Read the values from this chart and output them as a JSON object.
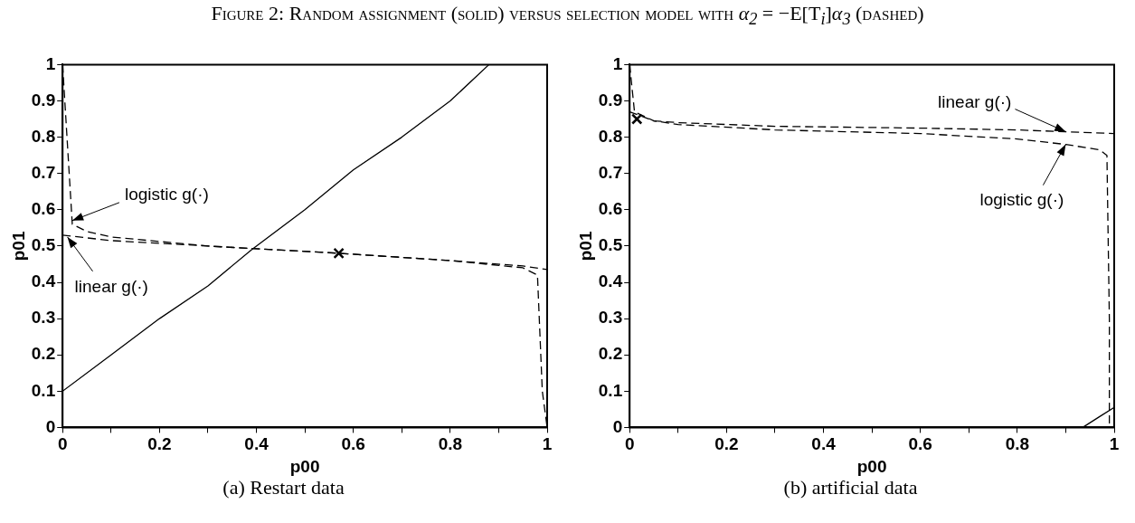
{
  "chart_data": [
    {
      "type": "line",
      "title": "Figure 2: Random assignment (solid) versus selection model with α$_{2}$ = −E[T$_{i}$]α$_{3}$ (dashed)",
      "xlabel": "p00",
      "ylabel": "p01",
      "xlim": [
        0,
        1
      ],
      "ylim": [
        0,
        1
      ],
      "xticks": [
        0,
        {
          "value": 0.1,
          "label": null
        },
        0.2,
        {
          "value": 0.3,
          "label": null
        },
        0.4,
        {
          "value": 0.5,
          "label": null
        },
        0.6,
        {
          "value": 0.7,
          "label": null
        },
        0.8,
        {
          "value": 0.9,
          "label": null
        },
        1
      ],
      "yticks": [
        0,
        0.1,
        0.2,
        0.3,
        0.4,
        0.5,
        0.6,
        0.7,
        0.8,
        0.9,
        1
      ],
      "grid": false,
      "series": [
        {
          "color": "#000000",
          "line_style": "solid",
          "x": [
            0,
            0.1,
            0.2,
            0.3,
            0.39,
            0.5,
            0.6,
            0.7,
            0.8,
            0.88
          ],
          "values": [
            0.1,
            0.2,
            0.3,
            0.39,
            0.49,
            0.6,
            0.71,
            0.8,
            0.9,
            1
          ]
        },
        {
          "type": "line",
          "color": "#000000",
          "line_style": "dashed",
          "x": [
            0,
            0.1,
            0.3,
            0.57,
            0.8,
            0.95,
            1
          ],
          "values": [
            0.53,
            0.515,
            0.5,
            0.48,
            0.46,
            0.445,
            0.435
          ]
        },
        {
          "type": "line",
          "color": "#000000",
          "line_style": "dashed",
          "x": [
            0,
            0.02,
            0.05,
            0.1,
            0.3,
            0.57,
            0.8,
            0.95,
            0.98,
            0.99,
            1
          ],
          "values": [
            1,
            0.56,
            0.54,
            0.525,
            0.5,
            0.48,
            0.46,
            0.44,
            0.42,
            0.1,
            0
          ]
        },
        {
          "type": "scatter",
          "color": "#000000",
          "marker": "cross",
          "x": [
            0.57
          ],
          "values": [
            0.48
          ]
        }
      ],
      "annotations": [
        {
          "text": "logistic g(·)",
          "x": 0.02,
          "y": 0.57
        },
        {
          "text": "linear g(·)",
          "x": 0.01,
          "y": 0.525
        },
        "(a) Restart data"
      ]
    },
    {
      "type": "line",
      "xlabel": "p00",
      "ylabel": "p01",
      "xlim": [
        0,
        1
      ],
      "ylim": [
        0,
        1
      ],
      "xticks": [
        0,
        {
          "value": 0.1,
          "label": null
        },
        0.2,
        {
          "value": 0.3,
          "label": null
        },
        0.4,
        {
          "value": 0.5,
          "label": null
        },
        0.6,
        {
          "value": 0.7,
          "label": null
        },
        0.8,
        {
          "value": 0.9,
          "label": null
        },
        1
      ],
      "yticks": [
        0,
        0.1,
        0.2,
        0.3,
        0.4,
        0.5,
        0.6,
        0.7,
        0.8,
        0.9,
        1
      ],
      "grid": false,
      "series": [
        {
          "color": "#000000",
          "line_style": "solid",
          "x": [
            0.935,
            0.97,
            1
          ],
          "values": [
            0,
            0.03,
            0.055
          ]
        },
        {
          "type": "line",
          "color": "#000000",
          "line_style": "dashed",
          "x": [
            0,
            0.05,
            0.1,
            0.3,
            0.6,
            0.8,
            0.9,
            1
          ],
          "values": [
            0.87,
            0.845,
            0.84,
            0.83,
            0.825,
            0.82,
            0.815,
            0.81
          ]
        },
        {
          "type": "line",
          "color": "#000000",
          "line_style": "dashed",
          "x": [
            0,
            0.01,
            0.05,
            0.1,
            0.3,
            0.6,
            0.8,
            0.9,
            0.97,
            0.985,
            0.99,
            0.99
          ],
          "values": [
            1,
            0.87,
            0.845,
            0.835,
            0.82,
            0.81,
            0.795,
            0.78,
            0.765,
            0.75,
            0.3,
            0
          ]
        },
        {
          "type": "scatter",
          "color": "#000000",
          "marker": "cross",
          "x": [
            0.015
          ],
          "values": [
            0.85
          ]
        }
      ],
      "annotations": [
        {
          "text": "linear g(·)",
          "x": 0.9,
          "y": 0.815
        },
        {
          "text": "logistic g(·)",
          "x": 0.9,
          "y": 0.78
        },
        "(b) artificial data"
      ]
    }
  ]
}
